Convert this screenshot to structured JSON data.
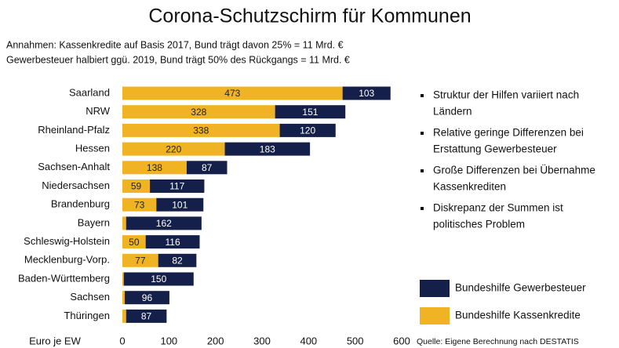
{
  "chart_data": {
    "type": "stacked-bar-horizontal",
    "title": "Corona-Schutzschirm für Kommunen",
    "subtitle": [
      "Annahmen: Kassenkredite auf Basis 2017, Bund trägt davon 25% = 11 Mrd. €",
      "Gewerbesteuer halbiert ggü. 2019, Bund trägt 50% des Rückgangs = 11 Mrd. €"
    ],
    "categories": [
      "Saarland",
      "NRW",
      "Rheinland-Pfalz",
      "Hessen",
      "Sachsen-Anhalt",
      "Niedersachsen",
      "Brandenburg",
      "Bayern",
      "Schleswig-Holstein",
      "Mecklenburg-Vorp.",
      "Baden-Württemberg",
      "Sachsen",
      "Thüringen"
    ],
    "series": [
      {
        "name": "Bundeshilfe Kassenkredite",
        "color": "#f0b323",
        "values": [
          473,
          328,
          338,
          220,
          138,
          59,
          73,
          8,
          50,
          77,
          3,
          5,
          8
        ]
      },
      {
        "name": "Bundeshilfe Gewerbesteuer",
        "color": "#14204a",
        "values": [
          103,
          151,
          120,
          183,
          87,
          117,
          101,
          162,
          116,
          82,
          150,
          96,
          87
        ]
      }
    ],
    "xlim": [
      0,
      600
    ],
    "xticks": [
      0,
      100,
      200,
      300,
      400,
      500,
      600
    ],
    "x_label": "Euro je EW",
    "source": "Quelle: Eigene Berechnung nach DESTATIS",
    "bullets": [
      [
        "Struktur der Hilfen variiert nach",
        "Ländern"
      ],
      [
        "Relative geringe Differenzen bei",
        "Erstattung Gewerbesteuer"
      ],
      [
        "Große Differenzen bei Übernahme",
        "Kassenkrediten"
      ],
      [
        "Diskrepanz der Summen ist",
        "politisches Problem"
      ]
    ]
  }
}
